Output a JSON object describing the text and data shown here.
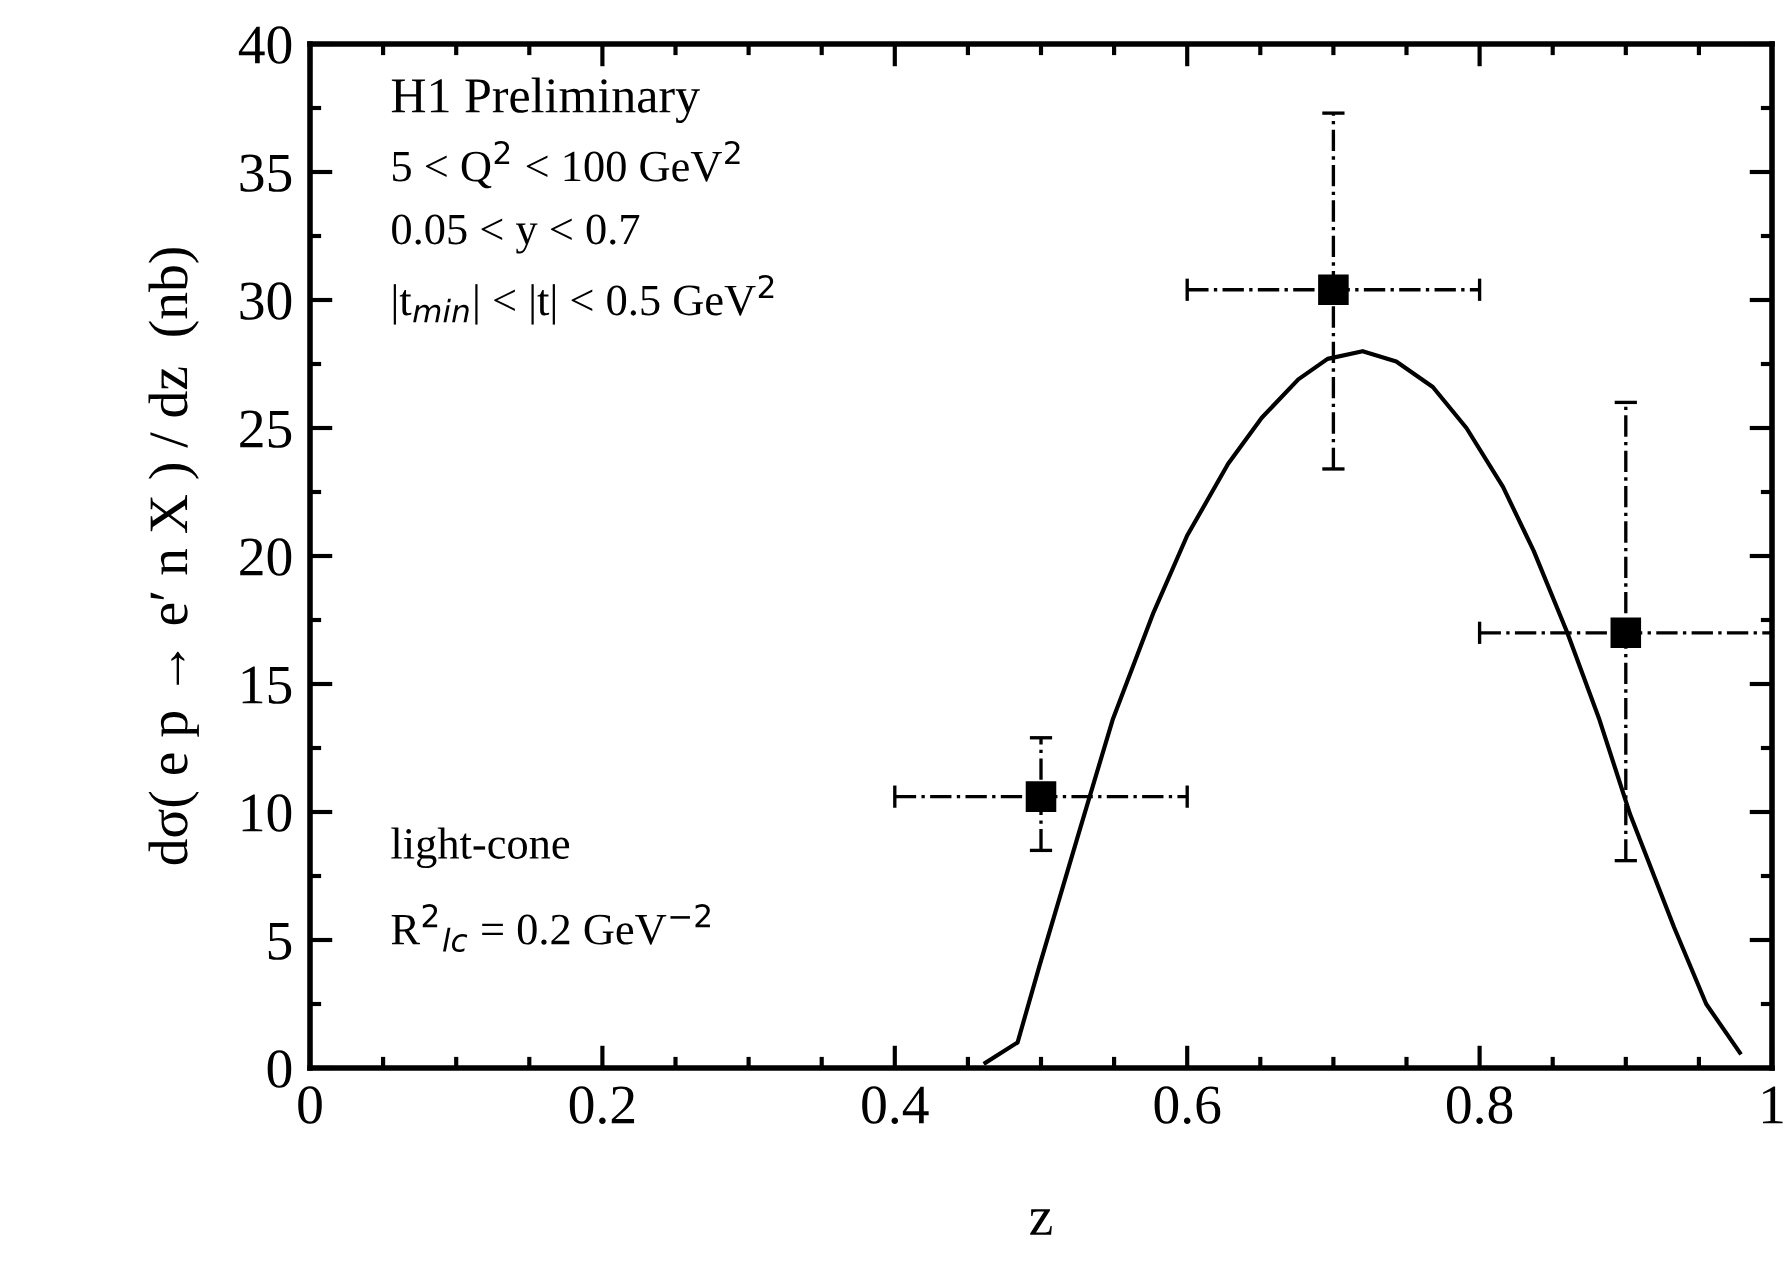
{
  "chart_data": {
    "type": "scatter",
    "xlabel": "z",
    "ylabel": "dσ( e p → e′ n X ) / dz  (nb)",
    "xlim": [
      0,
      1
    ],
    "ylim": [
      0,
      40
    ],
    "xticks": [
      0,
      0.2,
      0.4,
      0.6,
      0.8,
      1
    ],
    "yticks": [
      0,
      5,
      10,
      15,
      20,
      25,
      30,
      35,
      40
    ],
    "grid": false,
    "legend": false,
    "annotations": [
      "H1 Preliminary",
      "5 < Q$^{2}$ < 100 GeV$^{2}$",
      "0.05 < y < 0.7",
      "|t$_{min}$| < |t| < 0.5 GeV$^{2}$",
      "light-cone",
      "R$^{2}$$_{lc}$ = 0.2 GeV$^{−2}$"
    ],
    "series": [
      {
        "type": "line",
        "color": "#000000",
        "marker": "none",
        "line_style": "solid",
        "x": [
          0.462,
          0.484,
          0.499,
          0.527,
          0.549,
          0.577,
          0.6,
          0.628,
          0.651,
          0.676,
          0.696,
          0.72,
          0.743,
          0.768,
          0.791,
          0.816,
          0.837,
          0.86,
          0.882,
          0.903,
          0.933,
          0.955,
          0.978
        ],
        "values": [
          0.2,
          1.0,
          4.0,
          9.4,
          13.6,
          17.8,
          20.8,
          23.6,
          25.4,
          26.9,
          27.7,
          28.0,
          27.6,
          26.6,
          25.0,
          22.7,
          20.2,
          17.0,
          13.6,
          9.9,
          5.5,
          2.5,
          0.6
        ]
      },
      {
        "color": "#000000",
        "marker": "square",
        "x": [
          0.5,
          0.7,
          0.9
        ],
        "values": [
          10.6,
          30.4,
          17.0
        ],
        "errors": [
          [
            8.5,
            12.9
          ],
          [
            23.4,
            37.3
          ],
          [
            8.1,
            26.0
          ]
        ],
        "xerrors": [
          0.1,
          0.1,
          0.1
        ]
      }
    ]
  }
}
